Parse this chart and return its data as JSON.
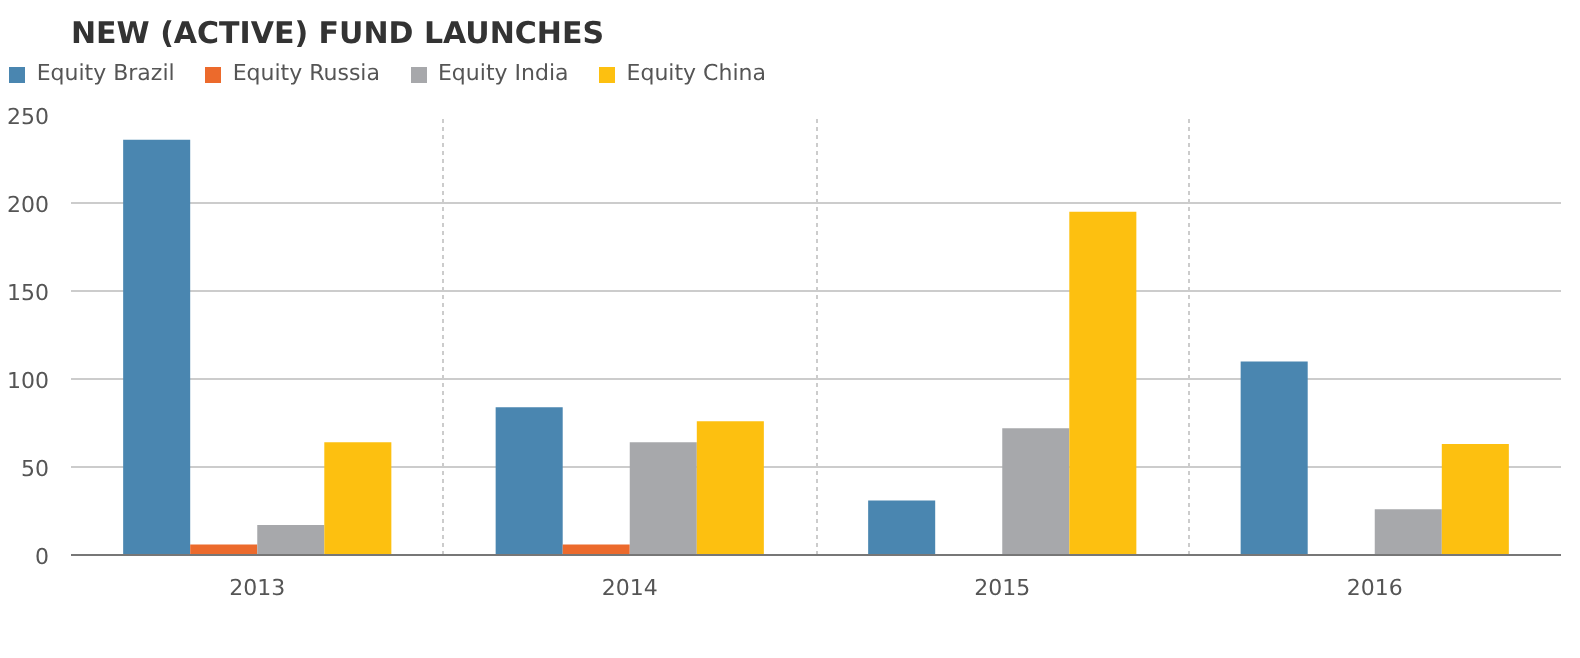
{
  "chart_data": {
    "type": "bar",
    "title": "NEW (ACTIVE) FUND LAUNCHES",
    "categories": [
      "2013",
      "2014",
      "2015",
      "2016"
    ],
    "series": [
      {
        "name": "Equity Brazil",
        "color": "#4a86b0",
        "values": [
          236,
          84,
          31,
          110
        ]
      },
      {
        "name": "Equity Russia",
        "color": "#ec6a2c",
        "values": [
          6,
          6,
          0,
          0
        ]
      },
      {
        "name": "Equity India",
        "color": "#a7a8ab",
        "values": [
          17,
          64,
          72,
          26
        ]
      },
      {
        "name": "Equity China",
        "color": "#fdc010",
        "values": [
          64,
          76,
          195,
          63
        ]
      }
    ],
    "ylim": [
      0,
      250
    ],
    "yticks": [
      0,
      50,
      100,
      150,
      200,
      250
    ],
    "grid": true,
    "legend": "top left"
  }
}
